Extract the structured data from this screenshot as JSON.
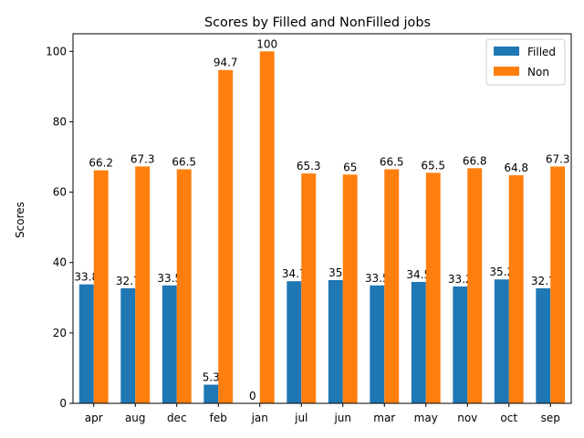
{
  "chart_data": {
    "type": "bar",
    "title": "Scores by Filled and NonFilled jobs",
    "xlabel": "",
    "ylabel": "Scores",
    "categories": [
      "apr",
      "aug",
      "dec",
      "feb",
      "jan",
      "jul",
      "jun",
      "mar",
      "may",
      "nov",
      "oct",
      "sep"
    ],
    "series": [
      {
        "name": "Filled",
        "color": "#1f77b4",
        "values": [
          33.8,
          32.7,
          33.5,
          5.3,
          0,
          34.7,
          35,
          33.5,
          34.5,
          33.2,
          35.2,
          32.7
        ]
      },
      {
        "name": "Non",
        "color": "#ff7f0e",
        "values": [
          66.2,
          67.3,
          66.5,
          94.7,
          100,
          65.3,
          65,
          66.5,
          65.5,
          66.8,
          64.8,
          67.3
        ]
      }
    ],
    "ylim": [
      0,
      105
    ],
    "yticks": [
      0,
      20,
      40,
      60,
      80,
      100
    ],
    "legend_position": "top-right",
    "grid": false
  }
}
